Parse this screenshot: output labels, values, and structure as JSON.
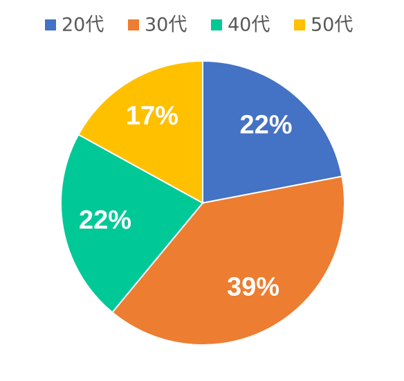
{
  "chart_data": {
    "type": "pie",
    "categories": [
      "20代",
      "30代",
      "40代",
      "50代"
    ],
    "values": [
      22,
      39,
      22,
      17
    ],
    "value_labels": [
      "22%",
      "39%",
      "22%",
      "17%"
    ],
    "colors": [
      "#4472c4",
      "#ed7d31",
      "#00c896",
      "#ffc000"
    ],
    "legend": "top"
  }
}
